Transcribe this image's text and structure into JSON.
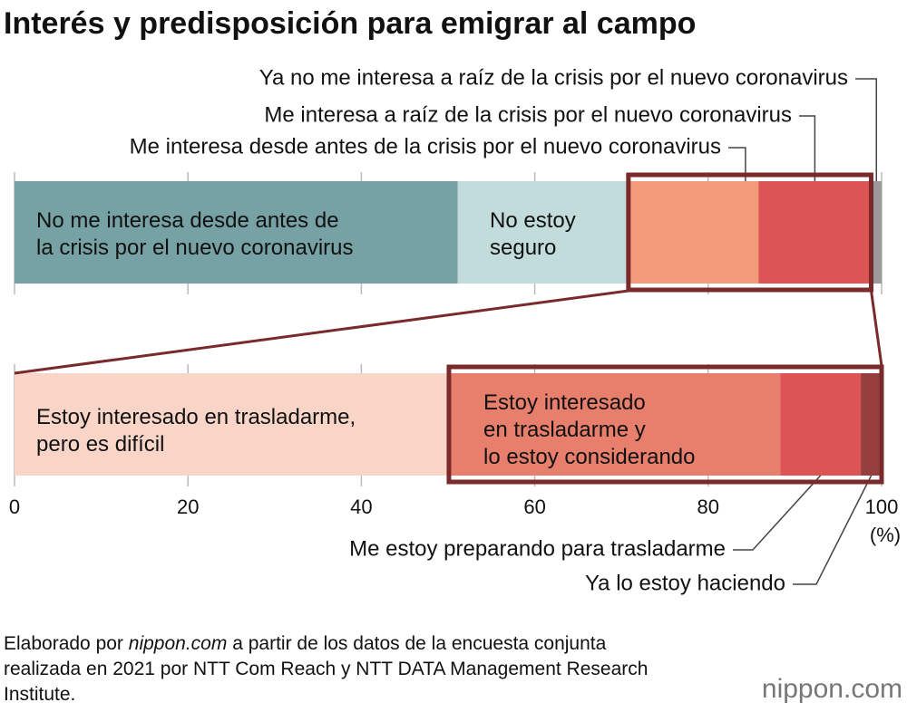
{
  "title": "Interés y predisposición para emigrar al campo",
  "chart_data": [
    {
      "type": "stacked-bar",
      "xlim": [
        0,
        100
      ],
      "series": [
        {
          "name": "No me interesa desde antes de la crisis por el nuevo coronavirus",
          "color": "#76a1a5",
          "values": [
            51.1
          ]
        },
        {
          "name": "No estoy seguro",
          "color": "#c2dbdb",
          "values": [
            19.7
          ]
        },
        {
          "name": "Me interesa desde antes de la crisis por el nuevo coronavirus",
          "color": "#f19b7a",
          "values": [
            15.0
          ]
        },
        {
          "name": "Me interesa a raíz de la crisis por el nuevo coronavirus",
          "color": "#dc5454",
          "values": [
            13.0
          ]
        },
        {
          "name": "Ya no me interesa a raíz de la crisis por el nuevo coronavirus",
          "color": "#9a9a9a",
          "values": [
            1.2
          ]
        }
      ]
    },
    {
      "type": "stacked-bar",
      "xlim": [
        0,
        100
      ],
      "xticks": [
        0,
        20,
        40,
        60,
        80,
        100
      ],
      "x_unit": "(%)",
      "series": [
        {
          "name": "Estoy interesado en trasladarme, pero es difícil",
          "color": "#f9d5c8",
          "values": [
            50.1
          ]
        },
        {
          "name": "Estoy interesado en trasladarme y lo estoy considerando",
          "color": "#e87e6c",
          "values": [
            38.2
          ]
        },
        {
          "name": "Me estoy preparando para trasladarme",
          "color": "#dc5454",
          "values": [
            9.3
          ]
        },
        {
          "name": "Ya lo estoy haciendo",
          "color": "#953f3f",
          "values": [
            2.4
          ]
        }
      ]
    }
  ],
  "source": {
    "prefix": "Elaborado por",
    "site": "nippon.com",
    "rest": "a partir de los datos de la encuesta conjunta realizada en 2021 por NTT Com Reach y NTT DATA Management Research Institute."
  },
  "logo": "nippon.com"
}
